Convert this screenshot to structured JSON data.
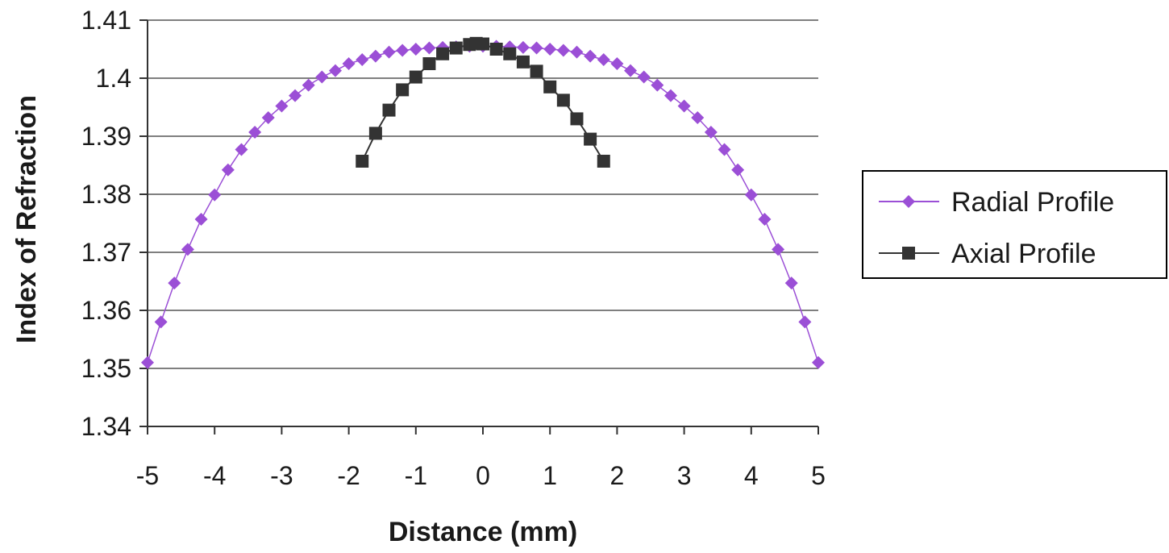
{
  "chart_data": {
    "type": "line",
    "title": "",
    "xlabel": "Distance (mm)",
    "ylabel": "Index of Refraction",
    "xlim": [
      -5,
      5
    ],
    "ylim": [
      1.34,
      1.41
    ],
    "x_ticks": [
      "-5",
      "-4",
      "-3",
      "-2",
      "-1",
      "0",
      "1",
      "2",
      "3",
      "4",
      "5"
    ],
    "y_ticks": [
      "1.34",
      "1.35",
      "1.36",
      "1.37",
      "1.38",
      "1.39",
      "1.4",
      "1.41"
    ],
    "grid": "horizontal",
    "legend_position": "right",
    "series": [
      {
        "name": "Radial Profile",
        "color": "#9b4fd6",
        "marker": "diamond",
        "x": [
          -5.0,
          -4.8,
          -4.6,
          -4.4,
          -4.2,
          -4.0,
          -3.8,
          -3.6,
          -3.4,
          -3.2,
          -3.0,
          -2.8,
          -2.6,
          -2.4,
          -2.2,
          -2.0,
          -1.8,
          -1.6,
          -1.4,
          -1.2,
          -1.0,
          -0.8,
          -0.6,
          -0.4,
          -0.2,
          0.0,
          0.2,
          0.4,
          0.6,
          0.8,
          1.0,
          1.2,
          1.4,
          1.6,
          1.8,
          2.0,
          2.2,
          2.4,
          2.6,
          2.8,
          3.0,
          3.2,
          3.4,
          3.6,
          3.8,
          4.0,
          4.2,
          4.4,
          4.6,
          4.8,
          5.0
        ],
        "y": [
          1.351,
          1.358,
          1.3647,
          1.3705,
          1.3757,
          1.3799,
          1.3842,
          1.3877,
          1.3907,
          1.3932,
          1.3952,
          1.397,
          1.3988,
          1.4002,
          1.4013,
          1.4025,
          1.4032,
          1.4038,
          1.4045,
          1.4048,
          1.405,
          1.4052,
          1.4053,
          1.4054,
          1.4055,
          1.4055,
          1.4055,
          1.4054,
          1.4053,
          1.4052,
          1.405,
          1.4048,
          1.4045,
          1.4038,
          1.4032,
          1.4025,
          1.4013,
          1.4002,
          1.3988,
          1.397,
          1.3952,
          1.3932,
          1.3907,
          1.3877,
          1.3842,
          1.3799,
          1.3757,
          1.3705,
          1.3647,
          1.358,
          1.351
        ]
      },
      {
        "name": "Axial Profile",
        "color": "#333333",
        "marker": "square",
        "x": [
          -1.8,
          -1.6,
          -1.4,
          -1.2,
          -1.0,
          -0.8,
          -0.6,
          -0.4,
          -0.2,
          -0.1,
          0.0,
          0.2,
          0.4,
          0.6,
          0.8,
          1.0,
          1.2,
          1.4,
          1.6,
          1.8
        ],
        "y": [
          1.3857,
          1.3905,
          1.3945,
          1.398,
          1.4002,
          1.4025,
          1.4042,
          1.4052,
          1.4058,
          1.406,
          1.4059,
          1.405,
          1.4042,
          1.4028,
          1.4012,
          1.3985,
          1.3962,
          1.393,
          1.3895,
          1.3857
        ]
      }
    ]
  }
}
